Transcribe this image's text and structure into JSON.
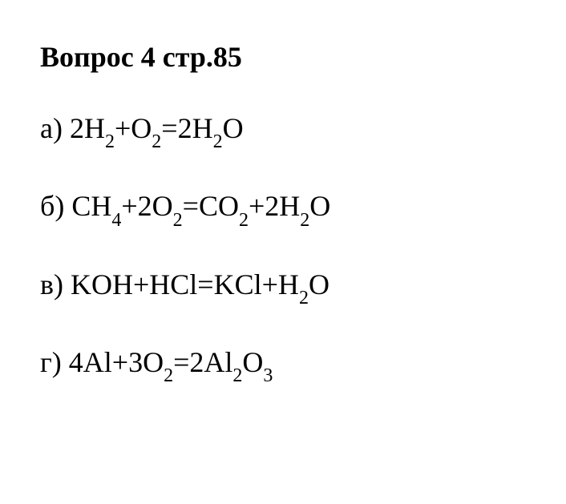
{
  "title": "Вопрос 4 стр.85",
  "equations": {
    "a": {
      "label": "а) ",
      "parts": [
        {
          "t": "2H",
          "s": ""
        },
        {
          "t": "",
          "s": "2"
        },
        {
          "t": "+O",
          "s": ""
        },
        {
          "t": "",
          "s": "2"
        },
        {
          "t": "=2H",
          "s": ""
        },
        {
          "t": "",
          "s": "2"
        },
        {
          "t": "O",
          "s": ""
        }
      ]
    },
    "b": {
      "label": "б) ",
      "parts": [
        {
          "t": "CH",
          "s": ""
        },
        {
          "t": "",
          "s": "4"
        },
        {
          "t": "+2O",
          "s": ""
        },
        {
          "t": "",
          "s": "2"
        },
        {
          "t": "=CO",
          "s": ""
        },
        {
          "t": "",
          "s": "2"
        },
        {
          "t": "+2H",
          "s": ""
        },
        {
          "t": "",
          "s": "2"
        },
        {
          "t": "O",
          "s": ""
        }
      ]
    },
    "c": {
      "label": "в) ",
      "parts": [
        {
          "t": "KOH+HCl=KCl+H",
          "s": ""
        },
        {
          "t": "",
          "s": "2"
        },
        {
          "t": "O",
          "s": ""
        }
      ]
    },
    "d": {
      "label": "г) ",
      "parts": [
        {
          "t": "4Al+3O",
          "s": ""
        },
        {
          "t": "",
          "s": "2"
        },
        {
          "t": "=2Al",
          "s": ""
        },
        {
          "t": "",
          "s": "2"
        },
        {
          "t": "O",
          "s": ""
        },
        {
          "t": "",
          "s": "3"
        }
      ]
    }
  },
  "style": {
    "font_family": "Times New Roman",
    "title_fontsize": 36,
    "title_fontweight": "bold",
    "equation_fontsize": 36,
    "subscript_fontsize": 24,
    "text_color": "#000000",
    "background_color": "#ffffff",
    "line_spacing": 45
  }
}
